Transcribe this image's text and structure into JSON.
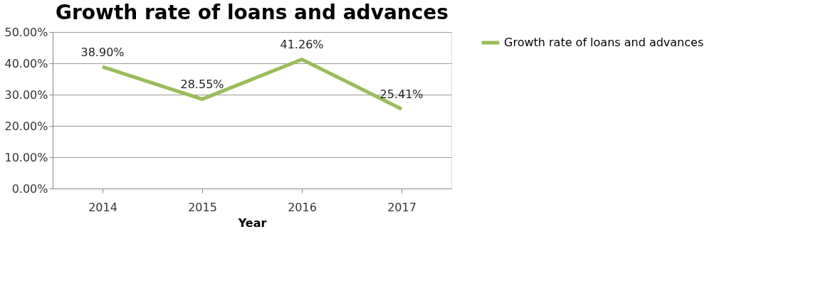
{
  "chart_data": {
    "type": "line",
    "title": "Growth rate of loans and advances",
    "xlabel": "Year",
    "categories": [
      "2014",
      "2015",
      "2016",
      "2017"
    ],
    "series": [
      {
        "name": "Growth rate of loans and advances",
        "color": "#9bbb59",
        "values": [
          38.9,
          28.55,
          41.26,
          25.41
        ],
        "value_labels": [
          "38.90%",
          "28.55%",
          "41.26%",
          "25.41%"
        ]
      }
    ],
    "ylim": [
      0,
      50
    ],
    "yticks": [
      {
        "value": 0,
        "label": "0.00%"
      },
      {
        "value": 10,
        "label": "10.00%"
      },
      {
        "value": 20,
        "label": "20.00%"
      },
      {
        "value": 30,
        "label": "30.00%"
      },
      {
        "value": 40,
        "label": "40.00%"
      },
      {
        "value": 50,
        "label": "50.00%"
      }
    ],
    "grid": "y",
    "legend": "right",
    "marker": "none",
    "line_style": "solid"
  }
}
